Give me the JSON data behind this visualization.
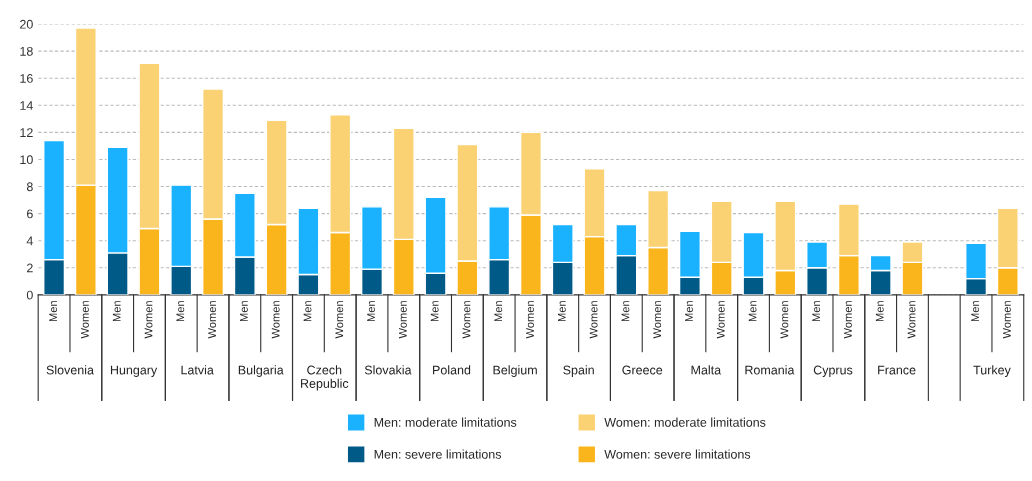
{
  "chart_data": {
    "type": "bar",
    "stacked": true,
    "categories": [
      "Men",
      "Women",
      "Men",
      "Women",
      "Men",
      "Women",
      "Men",
      "Women",
      "Men",
      "Women",
      "Men",
      "Women",
      "Men",
      "Women",
      "Men",
      "Women",
      "Men",
      "Women",
      "Men",
      "Women",
      "Men",
      "Women",
      "Men",
      "Women",
      "Men",
      "Women",
      "Men",
      "Women",
      null,
      "Men",
      "Women"
    ],
    "annotations": [
      "Slovenia",
      "Hungary",
      "Latvia",
      "Bulgaria",
      "Czech\nRepublic",
      "Slovakia",
      "Poland",
      "Belgium",
      "Spain",
      "Greece",
      "Malta",
      "Romania",
      "Cyprus",
      "France",
      "Turkey"
    ],
    "series": [
      {
        "name": "Men: severe limitations",
        "color": "#005a87",
        "values": [
          2.6,
          null,
          3.1,
          null,
          2.1,
          null,
          2.8,
          null,
          1.5,
          null,
          1.9,
          null,
          1.6,
          null,
          2.6,
          null,
          2.4,
          null,
          2.9,
          null,
          1.3,
          null,
          1.3,
          null,
          2.0,
          null,
          1.8,
          null,
          null,
          1.2,
          null
        ]
      },
      {
        "name": "Men: moderate limitations",
        "color": "#1ab2ff",
        "values": [
          8.8,
          null,
          7.8,
          null,
          6.0,
          null,
          4.7,
          null,
          4.9,
          null,
          4.6,
          null,
          5.6,
          null,
          3.9,
          null,
          2.8,
          null,
          2.3,
          null,
          3.4,
          null,
          3.3,
          null,
          1.9,
          null,
          1.1,
          null,
          null,
          2.6,
          null
        ]
      },
      {
        "name": "Women: severe limitations",
        "color": "#fbb51c",
        "values": [
          null,
          8.1,
          null,
          4.9,
          null,
          5.6,
          null,
          5.2,
          null,
          4.6,
          null,
          4.1,
          null,
          2.5,
          null,
          5.9,
          null,
          4.3,
          null,
          3.5,
          null,
          2.4,
          null,
          1.8,
          null,
          2.9,
          null,
          2.4,
          null,
          null,
          2.0
        ]
      },
      {
        "name": "Women: moderate limitations",
        "color": "#fad173",
        "values": [
          null,
          11.6,
          null,
          12.2,
          null,
          9.6,
          null,
          7.7,
          null,
          8.7,
          null,
          8.2,
          null,
          8.6,
          null,
          6.1,
          null,
          5.0,
          null,
          4.2,
          null,
          4.5,
          null,
          5.1,
          null,
          3.8,
          null,
          1.5,
          null,
          null,
          4.4
        ]
      }
    ],
    "ylim": [
      0,
      20
    ],
    "yticks": [
      0,
      2,
      4,
      6,
      8,
      10,
      12,
      14,
      16,
      18,
      20
    ],
    "grid": "y",
    "legend": "bottom"
  }
}
